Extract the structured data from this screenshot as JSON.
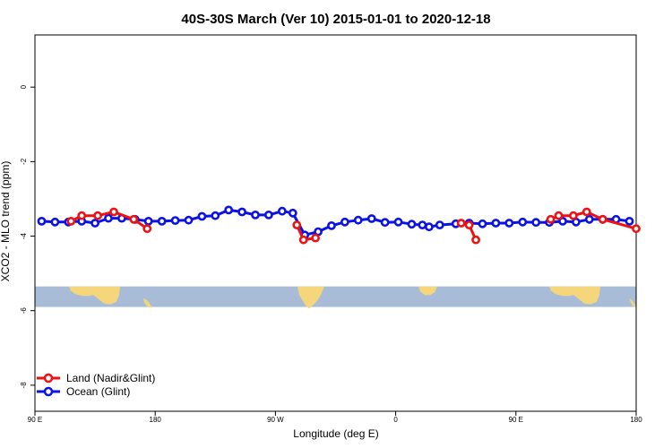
{
  "chart_data": {
    "type": "line",
    "title": "40S-30S March (Ver 10)   2015-01-01 to 2020-12-18",
    "xlabel": "Longitude (deg E)",
    "ylabel": "XCO2 - MLO trend (ppm)",
    "xlim": [
      90,
      540
    ],
    "ylim": [
      -8.7,
      1.4
    ],
    "x_ticks": [
      {
        "value": 90,
        "label": "90 E"
      },
      {
        "value": 180,
        "label": "180"
      },
      {
        "value": 270,
        "label": "90 W"
      },
      {
        "value": 360,
        "label": "0"
      },
      {
        "value": 450,
        "label": "90 E"
      },
      {
        "value": 540,
        "label": "180"
      }
    ],
    "y_ticks": [
      {
        "value": 0,
        "label": "0"
      },
      {
        "value": -2,
        "label": "-2"
      },
      {
        "value": -4,
        "label": "-4"
      },
      {
        "value": -6,
        "label": "-6"
      },
      {
        "value": -8,
        "label": "-8"
      }
    ],
    "land_sea_strip": {
      "y_top": -5.35,
      "y_bottom": -5.9,
      "ocean_color": "#a8bcd8",
      "land_color": "#f5d67a"
    },
    "series": [
      {
        "name": "Land (Nadir&Glint)",
        "color": "#ee1111",
        "segments": [
          [
            [
              117,
              -3.6
            ],
            [
              125,
              -3.45
            ],
            [
              137,
              -3.45
            ],
            [
              149,
              -3.35
            ],
            [
              164,
              -3.55
            ],
            [
              174,
              -3.8
            ]
          ],
          [
            [
              286,
              -3.7
            ],
            [
              291,
              -4.1
            ],
            [
              300,
              -4.05
            ]
          ],
          [
            [
              409,
              -3.65
            ],
            [
              415,
              -3.7
            ],
            [
              420,
              -4.1
            ]
          ],
          [
            [
              476,
              -3.55
            ],
            [
              482,
              -3.45
            ],
            [
              493,
              -3.45
            ],
            [
              503,
              -3.35
            ],
            [
              515,
              -3.55
            ],
            [
              540,
              -3.8
            ]
          ]
        ]
      },
      {
        "name": "Ocean (Glint)",
        "color": "#0a12e6",
        "segments": [
          [
            [
              95,
              -3.6
            ],
            [
              105,
              -3.62
            ],
            [
              115,
              -3.62
            ],
            [
              125,
              -3.6
            ],
            [
              135,
              -3.65
            ],
            [
              145,
              -3.52
            ],
            [
              155,
              -3.52
            ],
            [
              165,
              -3.55
            ],
            [
              175,
              -3.6
            ],
            [
              185,
              -3.6
            ],
            [
              195,
              -3.58
            ],
            [
              205,
              -3.57
            ],
            [
              215,
              -3.47
            ],
            [
              225,
              -3.45
            ],
            [
              235,
              -3.3
            ],
            [
              245,
              -3.35
            ],
            [
              255,
              -3.43
            ],
            [
              265,
              -3.43
            ],
            [
              275,
              -3.33
            ],
            [
              283,
              -3.38
            ],
            [
              292,
              -3.97
            ],
            [
              302,
              -3.88
            ],
            [
              312,
              -3.72
            ],
            [
              322,
              -3.62
            ],
            [
              332,
              -3.57
            ],
            [
              342,
              -3.53
            ],
            [
              352,
              -3.63
            ],
            [
              362,
              -3.62
            ],
            [
              372,
              -3.68
            ],
            [
              380,
              -3.7
            ],
            [
              385,
              -3.75
            ],
            [
              393,
              -3.7
            ],
            [
              405,
              -3.67
            ],
            [
              415,
              -3.65
            ],
            [
              425,
              -3.67
            ],
            [
              435,
              -3.65
            ],
            [
              445,
              -3.65
            ],
            [
              455,
              -3.62
            ],
            [
              465,
              -3.63
            ],
            [
              475,
              -3.63
            ],
            [
              485,
              -3.6
            ],
            [
              495,
              -3.62
            ],
            [
              505,
              -3.55
            ],
            [
              515,
              -3.55
            ],
            [
              525,
              -3.55
            ],
            [
              535,
              -3.6
            ]
          ]
        ]
      }
    ],
    "legend": {
      "position": "bottom-left"
    }
  }
}
